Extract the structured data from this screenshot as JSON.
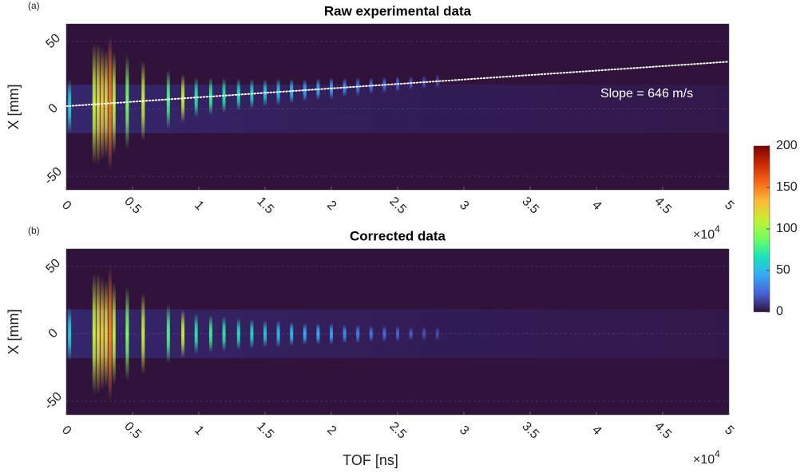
{
  "chart_data": [
    {
      "type": "heatmap",
      "panel_label": "(a)",
      "title": "Raw experimental data",
      "ylabel": "X [mm]",
      "x_multiplier": "×10",
      "x_multiplier_power": "4",
      "xlim": [
        0,
        50000
      ],
      "xticks": [
        0,
        {
          "value": 5000,
          "label": "0.5"
        },
        {
          "value": 10000,
          "label": "1"
        },
        {
          "value": 15000,
          "label": "1.5"
        },
        {
          "value": 20000,
          "label": "2"
        },
        {
          "value": 25000,
          "label": "2.5"
        },
        {
          "value": 30000,
          "label": "3"
        },
        {
          "value": 35000,
          "label": "3.5"
        },
        {
          "value": 40000,
          "label": "4"
        },
        {
          "value": 45000,
          "label": "4.5"
        },
        {
          "value": 50000,
          "label": "5"
        }
      ],
      "ylim": [
        -60,
        63
      ],
      "yticks": [
        -50,
        0,
        50
      ],
      "peaks": {
        "x": [
          250,
          2100,
          2400,
          2700,
          3000,
          3300,
          3600,
          4600,
          5800,
          7700,
          8800,
          9800,
          10900,
          11900,
          13000,
          14000,
          15000,
          16000,
          17000,
          18000,
          19000,
          20000,
          21000,
          22000,
          23000,
          24000,
          25000,
          26000,
          27000,
          28000
        ],
        "values": [
          60,
          110,
          120,
          130,
          120,
          150,
          110,
          90,
          110,
          80,
          110,
          70,
          75,
          70,
          65,
          60,
          55,
          50,
          50,
          45,
          45,
          40,
          35,
          30,
          28,
          25,
          22,
          20,
          18,
          16
        ],
        "half_width": [
          20,
          45,
          45,
          42,
          40,
          50,
          38,
          35,
          30,
          22,
          18,
          15,
          14,
          13,
          12,
          11,
          10,
          10,
          9,
          8,
          8,
          8,
          7,
          7,
          6,
          6,
          6,
          5,
          5,
          5
        ]
      },
      "fit_line": {
        "x": [
          0,
          50000
        ],
        "y": [
          2,
          35
        ]
      },
      "annotation": "Slope = 646 m/s",
      "centered_on_fit": true
    },
    {
      "type": "heatmap",
      "panel_label": "(b)",
      "title": "Corrected data",
      "ylabel": "X [mm]",
      "xlabel": "TOF [ns]",
      "x_multiplier": "×10",
      "x_multiplier_power": "4",
      "xlim": [
        0,
        50000
      ],
      "xticks": [
        0,
        {
          "value": 5000,
          "label": "0.5"
        },
        {
          "value": 10000,
          "label": "1"
        },
        {
          "value": 15000,
          "label": "1.5"
        },
        {
          "value": 20000,
          "label": "2"
        },
        {
          "value": 25000,
          "label": "2.5"
        },
        {
          "value": 30000,
          "label": "3"
        },
        {
          "value": 35000,
          "label": "3.5"
        },
        {
          "value": 40000,
          "label": "4"
        },
        {
          "value": 45000,
          "label": "4.5"
        },
        {
          "value": 50000,
          "label": "5"
        }
      ],
      "ylim": [
        -60,
        63
      ],
      "yticks": [
        -50,
        0,
        50
      ],
      "peaks": {
        "x": [
          250,
          2100,
          2400,
          2700,
          3000,
          3300,
          3600,
          4600,
          5800,
          7700,
          8800,
          9800,
          10900,
          11900,
          13000,
          14000,
          15000,
          16000,
          17000,
          18000,
          19000,
          20000,
          21000,
          22000,
          23000,
          24000,
          25000,
          26000,
          27000,
          28000
        ],
        "values": [
          60,
          110,
          120,
          130,
          120,
          150,
          110,
          90,
          110,
          80,
          110,
          70,
          75,
          70,
          65,
          60,
          55,
          50,
          50,
          45,
          45,
          40,
          35,
          30,
          28,
          25,
          22,
          20,
          18,
          16
        ],
        "half_width": [
          20,
          45,
          45,
          42,
          40,
          50,
          38,
          35,
          30,
          22,
          18,
          15,
          14,
          13,
          12,
          11,
          10,
          10,
          9,
          8,
          8,
          8,
          7,
          7,
          6,
          6,
          6,
          5,
          5,
          5
        ]
      },
      "centered_on_fit": false
    },
    {
      "type": "colorbar",
      "clim": [
        0,
        200
      ],
      "ticks": [
        0,
        50,
        100,
        150,
        200
      ],
      "colors": [
        "#30123b",
        "#4662d7",
        "#36aaf9",
        "#1ae4b6",
        "#72fe5e",
        "#c7ef34",
        "#fabb39",
        "#f66b19",
        "#cb2a04",
        "#7a0403"
      ]
    }
  ]
}
